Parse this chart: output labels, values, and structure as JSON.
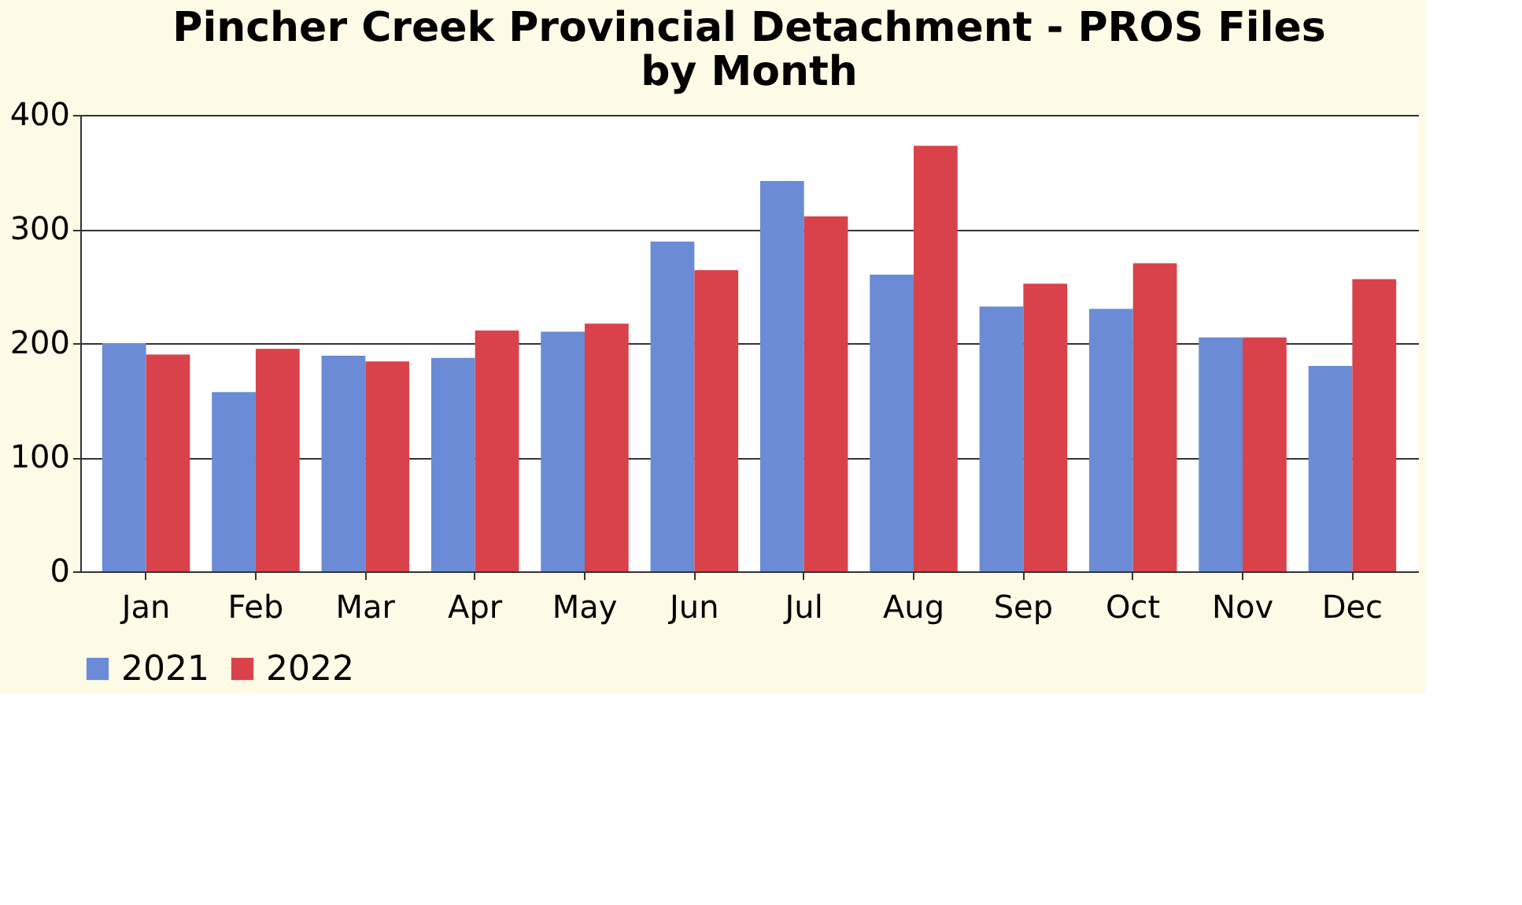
{
  "chart_data": {
    "type": "bar",
    "title": [
      "Pincher Creek Provincial Detachment - PROS Files",
      "by Month"
    ],
    "categories": [
      "Jan",
      "Feb",
      "Mar",
      "Apr",
      "May",
      "Jun",
      "Jul",
      "Aug",
      "Sep",
      "Oct",
      "Nov",
      "Dec"
    ],
    "series": [
      {
        "name": "2021",
        "color": "#6b8bd6",
        "values": [
          200,
          157,
          189,
          187,
          210,
          289,
          342,
          260,
          232,
          230,
          205,
          180
        ]
      },
      {
        "name": "2022",
        "color": "#d9424a",
        "values": [
          190,
          195,
          184,
          211,
          217,
          264,
          311,
          373,
          252,
          270,
          205,
          256
        ]
      }
    ],
    "ylim": [
      0,
      400
    ],
    "yticks": [
      0,
      100,
      200,
      300,
      400
    ],
    "grid": "y",
    "legend": "bottom"
  }
}
